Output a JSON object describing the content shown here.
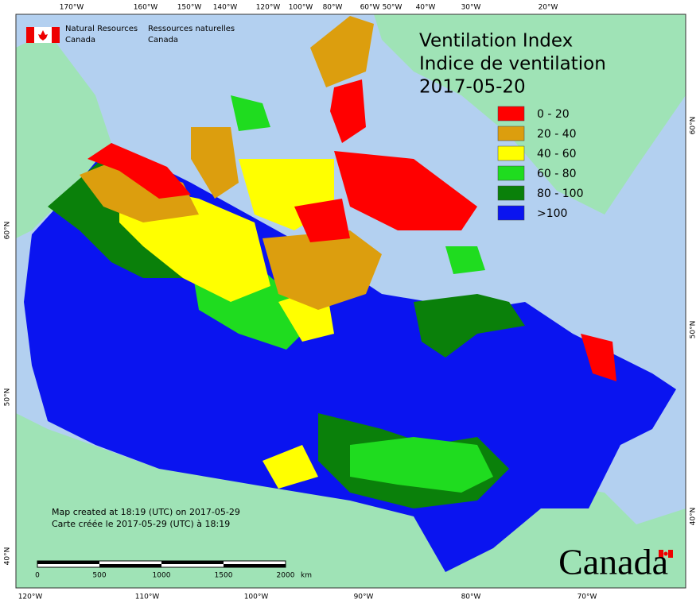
{
  "header": {
    "org_en_1": "Natural Resources",
    "org_en_2": "Canada",
    "org_fr_1": "Ressources naturelles",
    "org_fr_2": "Canada"
  },
  "title": {
    "line1": "Ventilation Index",
    "line2": "Indice de ventilation",
    "date": "2017-05-20"
  },
  "legend": [
    {
      "label": "0 - 20",
      "color": "#ff0000"
    },
    {
      "label": "20 - 40",
      "color": "#dc9e0e"
    },
    {
      "label": "40 - 60",
      "color": "#ffff00"
    },
    {
      "label": "60 - 80",
      "color": "#1fdc1f"
    },
    {
      "label": "80 - 100",
      "color": "#0a800a"
    },
    {
      "label": ">100",
      "color": "#0a14f0"
    }
  ],
  "top_labels": [
    "170°W",
    "160°W",
    "150°W",
    "140°W",
    "120°W",
    "100°W",
    "80°W",
    "60°W",
    "50°W",
    "40°W",
    "30°W",
    "20°W"
  ],
  "bottom_labels": [
    "120°W",
    "110°W",
    "100°W",
    "90°W",
    "80°W",
    "70°W"
  ],
  "right_labels": [
    "60°N",
    "50°N",
    "40°N"
  ],
  "left_labels": [
    "60°N",
    "50°N",
    "40°N"
  ],
  "credits": [
    "Map created at 18:19 (UTC) on 2017-05-29",
    "Carte créée le 2017-05-29 (UTC) à 18:19"
  ],
  "scale": {
    "labels": [
      "0",
      "500",
      "1000",
      "1500",
      "2000"
    ],
    "unit": "km"
  },
  "wordmark": "Canada"
}
